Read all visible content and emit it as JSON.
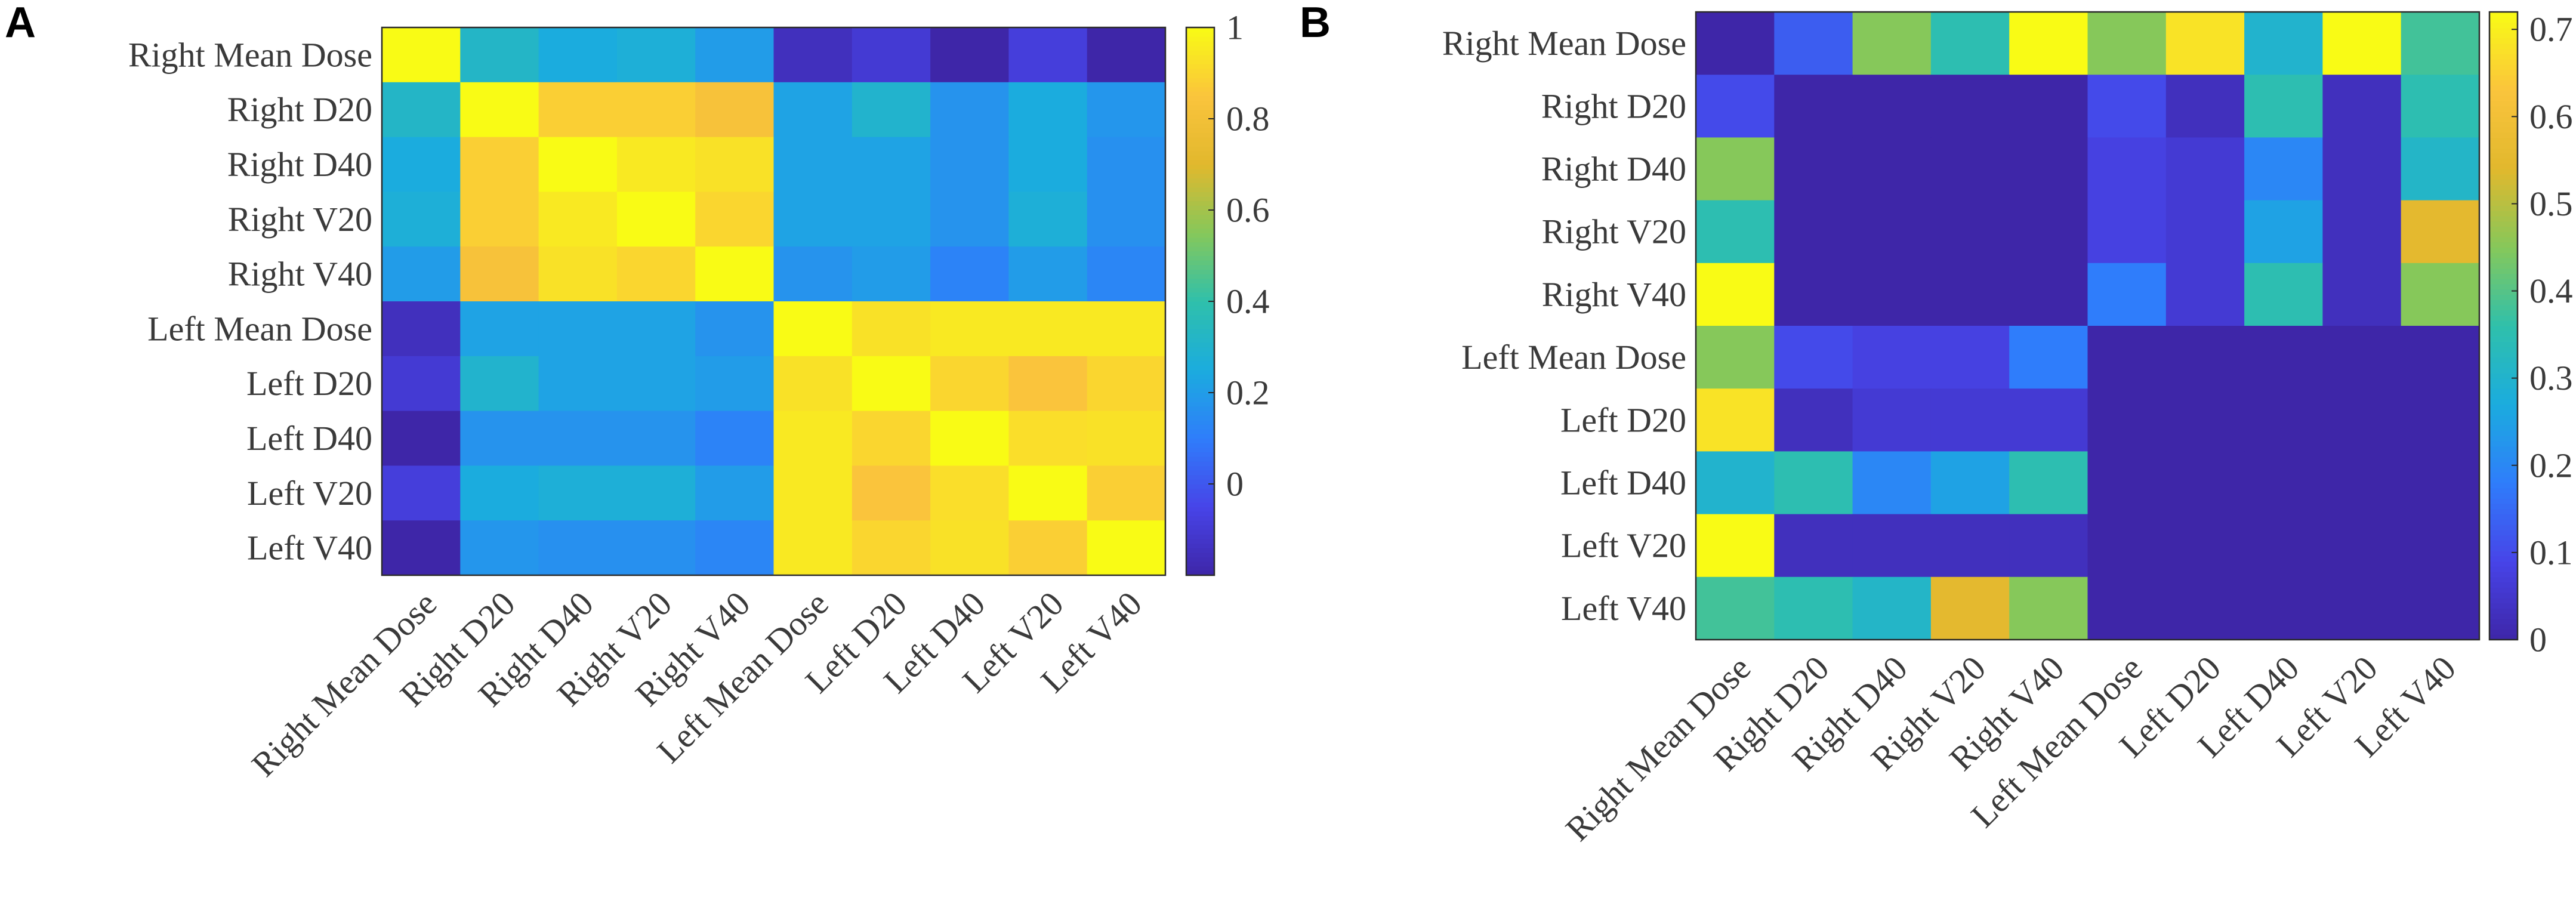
{
  "panel_labels": [
    "A",
    "B"
  ],
  "colors": {
    "colormap": [
      "#3e26a8",
      "#4744e8",
      "#2f7dfb",
      "#1bacde",
      "#2fc0ab",
      "#86c85a",
      "#e1b82d",
      "#fac43c",
      "#f9fb15"
    ],
    "axis": "#2a2a2a",
    "text": "#3a3a3a"
  },
  "chart_data": [
    {
      "type": "heatmap",
      "panel": "A",
      "title": "",
      "row_labels": [
        "Right Mean Dose",
        "Right D20",
        "Right D40",
        "Right V20",
        "Right V40",
        "Left Mean Dose",
        "Left D20",
        "Left D40",
        "Left V20",
        "Left V40"
      ],
      "col_labels": [
        "Right Mean Dose",
        "Right D20",
        "Right D40",
        "Right V20",
        "Right V40",
        "Left Mean Dose",
        "Left D20",
        "Left D40",
        "Left V20",
        "Left V40"
      ],
      "values": [
        [
          1.0,
          0.32,
          0.25,
          0.27,
          0.2,
          -0.15,
          -0.1,
          -0.2,
          -0.08,
          -0.2
        ],
        [
          0.32,
          1.0,
          0.88,
          0.88,
          0.83,
          0.22,
          0.3,
          0.17,
          0.25,
          0.18
        ],
        [
          0.25,
          0.88,
          1.0,
          0.95,
          0.93,
          0.22,
          0.22,
          0.17,
          0.25,
          0.16
        ],
        [
          0.27,
          0.88,
          0.95,
          1.0,
          0.9,
          0.22,
          0.22,
          0.17,
          0.27,
          0.16
        ],
        [
          0.2,
          0.83,
          0.93,
          0.9,
          1.0,
          0.17,
          0.2,
          0.12,
          0.2,
          0.13
        ],
        [
          -0.15,
          0.22,
          0.22,
          0.22,
          0.17,
          1.0,
          0.93,
          0.95,
          0.95,
          0.95
        ],
        [
          -0.1,
          0.3,
          0.22,
          0.22,
          0.2,
          0.93,
          1.0,
          0.9,
          0.85,
          0.9
        ],
        [
          -0.2,
          0.17,
          0.17,
          0.17,
          0.12,
          0.95,
          0.9,
          1.0,
          0.92,
          0.93
        ],
        [
          -0.08,
          0.25,
          0.27,
          0.27,
          0.2,
          0.95,
          0.85,
          0.92,
          1.0,
          0.88
        ],
        [
          -0.2,
          0.18,
          0.16,
          0.16,
          0.13,
          0.95,
          0.9,
          0.93,
          0.88,
          1.0
        ]
      ],
      "colorbar": {
        "range": [
          -0.2,
          1.0
        ],
        "ticks": [
          0,
          0.2,
          0.4,
          0.6,
          0.8,
          1
        ],
        "tick_labels": [
          "0",
          "0.2",
          "0.4",
          "0.6",
          "0.8",
          "1"
        ]
      },
      "legend": "colorbar-right"
    },
    {
      "type": "heatmap",
      "panel": "B",
      "title": "",
      "row_labels": [
        "Right Mean Dose",
        "Right D20",
        "Right D40",
        "Right V20",
        "Right V40",
        "Left Mean Dose",
        "Left D20",
        "Left D40",
        "Left V20",
        "Left V40"
      ],
      "col_labels": [
        "Right Mean Dose",
        "Right D20",
        "Right D40",
        "Right V20",
        "Right V40",
        "Left Mean Dose",
        "Left D20",
        "Left D40",
        "Left V20",
        "Left V40"
      ],
      "values": [
        [
          0.0,
          0.13,
          0.45,
          0.35,
          0.72,
          0.45,
          0.68,
          0.3,
          0.72,
          0.38
        ],
        [
          0.1,
          0.0,
          0.0,
          0.0,
          0.0,
          0.1,
          0.03,
          0.35,
          0.03,
          0.35
        ],
        [
          0.45,
          0.0,
          0.0,
          0.0,
          0.0,
          0.08,
          0.06,
          0.2,
          0.03,
          0.31
        ],
        [
          0.35,
          0.0,
          0.0,
          0.0,
          0.0,
          0.08,
          0.06,
          0.25,
          0.03,
          0.55
        ],
        [
          0.72,
          0.0,
          0.0,
          0.0,
          0.0,
          0.18,
          0.06,
          0.35,
          0.03,
          0.45
        ],
        [
          0.45,
          0.1,
          0.08,
          0.08,
          0.18,
          0.0,
          0.0,
          0.0,
          0.0,
          0.0
        ],
        [
          0.68,
          0.03,
          0.06,
          0.06,
          0.06,
          0.0,
          0.0,
          0.0,
          0.0,
          0.0
        ],
        [
          0.3,
          0.35,
          0.2,
          0.25,
          0.35,
          0.0,
          0.0,
          0.0,
          0.0,
          0.0
        ],
        [
          0.72,
          0.03,
          0.03,
          0.03,
          0.03,
          0.0,
          0.0,
          0.0,
          0.0,
          0.0
        ],
        [
          0.38,
          0.35,
          0.31,
          0.55,
          0.45,
          0.0,
          0.0,
          0.0,
          0.0,
          0.0
        ]
      ],
      "colorbar": {
        "range": [
          0,
          0.72
        ],
        "ticks": [
          0,
          0.1,
          0.2,
          0.3,
          0.4,
          0.5,
          0.6,
          0.7
        ],
        "tick_labels": [
          "0",
          "0.1",
          "0.2",
          "0.3",
          "0.4",
          "0.5",
          "0.6",
          "0.7"
        ]
      },
      "legend": "colorbar-right"
    }
  ]
}
